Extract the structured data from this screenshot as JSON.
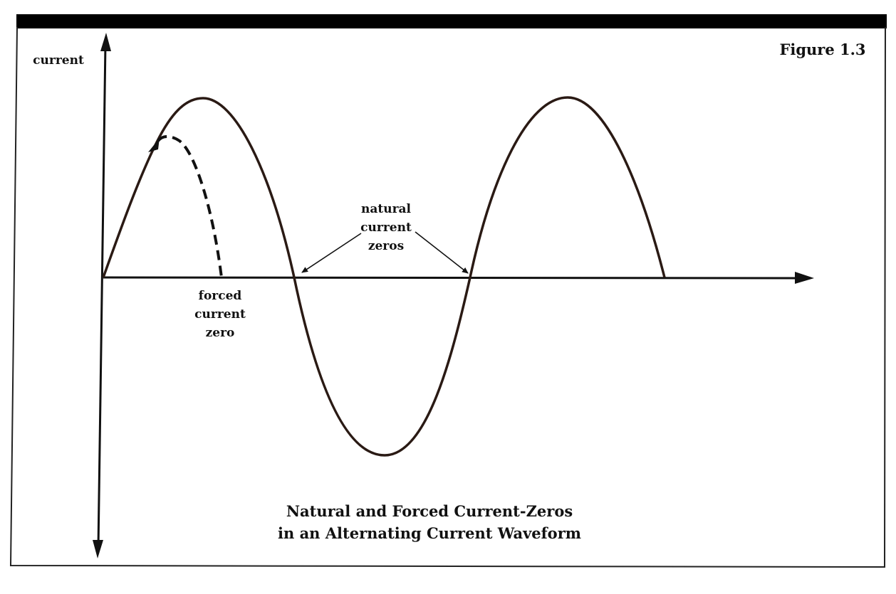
{
  "figure_label": "Figure 1.3",
  "axis": {
    "y_label": "current"
  },
  "annotations": {
    "natural": [
      "natural",
      "current",
      "zeros"
    ],
    "forced": [
      "forced",
      "current",
      "zero"
    ]
  },
  "caption": [
    "Natural and Forced Current-Zeros",
    "in an Alternating Current Waveform"
  ],
  "colors": {
    "ink": "#111111",
    "background": "#ffffff",
    "waveform": "#2a1a14"
  }
}
